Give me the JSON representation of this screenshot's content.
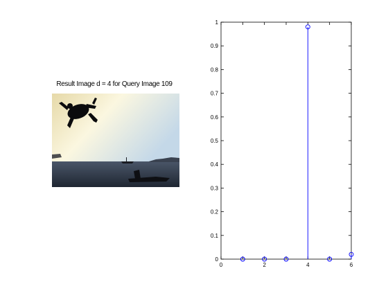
{
  "figure": {
    "title": "Result Image d = 4 for Query Image 109",
    "colors": {
      "background": "#ffffff",
      "axes": "#000000",
      "stem": "#0000ff",
      "photo_sky_top": "#b7cde0",
      "photo_sky_glow": "#fbf7d8",
      "photo_sea": "#2b3442",
      "photo_silhouette": "#0b0b0d"
    },
    "photo": {
      "description_icon": "diver-silhouette-photo"
    }
  },
  "chart_data": {
    "type": "stem",
    "title": "",
    "xlabel": "",
    "ylabel": "",
    "x": [
      1,
      2,
      3,
      4,
      5,
      6
    ],
    "y": [
      0.0,
      0.0,
      0.0,
      0.98,
      0.0,
      0.02
    ],
    "xlim": [
      0,
      6
    ],
    "ylim": [
      0,
      1
    ],
    "xticks": [
      "0",
      "1",
      "2",
      "3",
      "4",
      "5",
      "6"
    ],
    "xticklabels": [
      "0",
      "",
      "2",
      "",
      "4",
      "",
      "6"
    ],
    "yticks": [
      "0",
      "0.1",
      "0.2",
      "0.3",
      "0.4",
      "0.5",
      "0.6",
      "0.7",
      "0.8",
      "0.9",
      "1"
    ],
    "marker": "circle",
    "grid": false
  }
}
